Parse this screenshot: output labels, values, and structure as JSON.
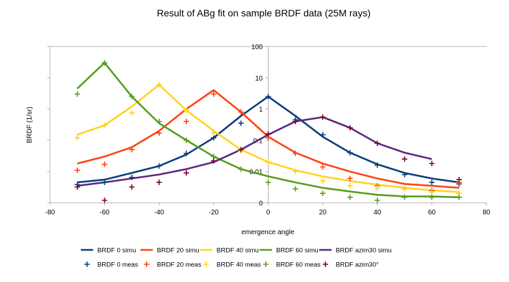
{
  "chart_data": {
    "type": "line",
    "title": "Result of ABg fit on sample BRDF data (25M rays)",
    "xlabel": "emergence angle",
    "ylabel": "BRDF (1/sr)",
    "xlim": [
      -80,
      80
    ],
    "x_ticks": [
      "-80",
      "-60",
      "-40",
      "-20",
      "0",
      "20",
      "40",
      "60",
      "80"
    ],
    "y_scale": "log",
    "y_ticks": [
      "0",
      "0.01",
      "0.1",
      "1",
      "10",
      "100"
    ],
    "grid": false,
    "legend_position": "bottom",
    "series": [
      {
        "name": "BRDF 0 simu",
        "kind": "line",
        "color": "#0a3d7d",
        "x": [
          -70,
          -60,
          -50,
          -40,
          -30,
          -20,
          -10,
          0,
          10,
          20,
          30,
          40,
          50,
          60,
          70
        ],
        "y": [
          0.0045,
          0.0055,
          0.009,
          0.015,
          0.035,
          0.12,
          0.6,
          2.5,
          0.6,
          0.13,
          0.04,
          0.017,
          0.009,
          0.006,
          0.0045
        ]
      },
      {
        "name": "BRDF 20 simu",
        "kind": "line",
        "color": "#ff4211",
        "x": [
          -70,
          -60,
          -50,
          -40,
          -30,
          -20,
          -10,
          0,
          10,
          20,
          30,
          40,
          50,
          60,
          70
        ],
        "y": [
          0.018,
          0.03,
          0.06,
          0.2,
          1.0,
          4.0,
          0.8,
          0.13,
          0.04,
          0.018,
          0.01,
          0.006,
          0.004,
          0.0035,
          0.003
        ]
      },
      {
        "name": "BRDF 40 simu",
        "kind": "line",
        "color": "#ffd320",
        "x": [
          -70,
          -60,
          -50,
          -40,
          -30,
          -20,
          -10,
          0,
          10,
          20,
          30,
          40,
          50,
          60,
          70
        ],
        "y": [
          0.15,
          0.3,
          1.2,
          6.0,
          0.9,
          0.2,
          0.05,
          0.02,
          0.011,
          0.007,
          0.005,
          0.0038,
          0.003,
          0.0025,
          0.0022
        ]
      },
      {
        "name": "BRDF 60 simu",
        "kind": "line",
        "color": "#579d1c",
        "x": [
          -70,
          -60,
          -50,
          -40,
          -30,
          -20,
          -10,
          0,
          10,
          20,
          30,
          40,
          50,
          60,
          70
        ],
        "y": [
          4.5,
          30,
          2.5,
          0.35,
          0.1,
          0.03,
          0.012,
          0.007,
          0.0045,
          0.003,
          0.0023,
          0.0018,
          0.0016,
          0.0016,
          0.0015
        ]
      },
      {
        "name": "BRDF azim30 simu",
        "kind": "line",
        "color": "#5c2680",
        "x": [
          -70,
          -60,
          -50,
          -40,
          -30,
          -20,
          -10,
          0,
          10,
          20,
          30,
          40,
          50,
          60
        ],
        "y": [
          0.0035,
          0.0045,
          0.006,
          0.008,
          0.012,
          0.02,
          0.05,
          0.15,
          0.4,
          0.55,
          0.25,
          0.08,
          0.04,
          0.025
        ]
      },
      {
        "name": "BRDF 0 meas",
        "kind": "marker",
        "color": "#0a3d7d",
        "x": [
          -70,
          -60,
          -50,
          -40,
          -30,
          -20,
          -10,
          0,
          10,
          20,
          30,
          40,
          50,
          60,
          70
        ],
        "y": [
          0.0038,
          0.0045,
          0.0065,
          0.015,
          0.038,
          0.12,
          0.35,
          2.5,
          0.45,
          0.15,
          0.04,
          0.016,
          0.008,
          0.0045,
          0.004
        ]
      },
      {
        "name": "BRDF 20 meas",
        "kind": "marker",
        "color": "#ff4211",
        "x": [
          -70,
          -60,
          -50,
          -40,
          -30,
          -20,
          -10,
          0,
          10,
          20,
          30,
          40,
          50,
          60,
          70
        ],
        "y": [
          0.011,
          0.017,
          0.05,
          0.17,
          0.4,
          3.0,
          0.8,
          0.12,
          0.038,
          0.014,
          0.006,
          0.0035,
          0.0028,
          0.0025,
          0.0045
        ]
      },
      {
        "name": "BRDF 40 meas",
        "kind": "marker",
        "color": "#ffd320",
        "x": [
          -70,
          -60,
          -50,
          -40,
          -30,
          -20,
          -10,
          0,
          10,
          20,
          30,
          40,
          50,
          60,
          70
        ],
        "y": [
          0.12,
          0.3,
          0.75,
          6.0,
          0.9,
          0.17,
          0.045,
          0.02,
          0.01,
          0.005,
          0.0035,
          0.003,
          0.0028,
          0.0022,
          0.002
        ]
      },
      {
        "name": "BRDF 60 meas",
        "kind": "marker",
        "color": "#579d1c",
        "x": [
          -70,
          -60,
          -50,
          -40,
          -30,
          -20,
          -10,
          0,
          10,
          20,
          30,
          40,
          50,
          60,
          70
        ],
        "y": [
          3.0,
          30,
          2.5,
          0.4,
          0.1,
          0.03,
          0.012,
          0.0045,
          0.0028,
          0.002,
          0.0015,
          0.0012,
          0.0015,
          0.0015,
          0.0015
        ]
      },
      {
        "name": "BRDF azim30°",
        "kind": "marker",
        "color": "#7e0021",
        "x": [
          -70,
          -60,
          -50,
          -40,
          -30,
          -20,
          -10,
          0,
          10,
          20,
          30,
          40,
          50,
          60,
          70
        ],
        "y": [
          0.0032,
          0.0012,
          0.0032,
          0.0045,
          0.009,
          0.022,
          0.05,
          0.16,
          0.4,
          0.55,
          0.25,
          0.08,
          0.025,
          0.018,
          0.0055
        ]
      }
    ]
  }
}
